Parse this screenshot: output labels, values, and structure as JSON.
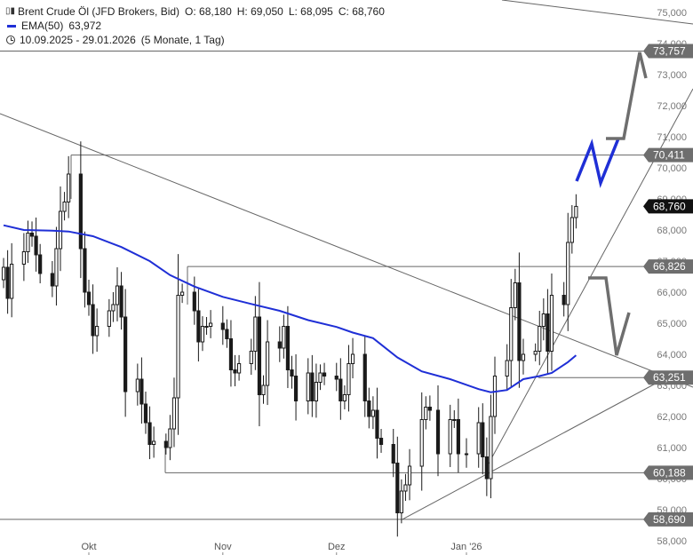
{
  "legend": {
    "instrument": "Brent Crude Öl (JFD Brokers, Bid)",
    "open": "O: 68,180",
    "high": "H: 69,050",
    "low": "L: 68,095",
    "close": "C: 68,760",
    "ema_label": "EMA(50)",
    "ema_value": "63,972",
    "range": "10.09.2025 - 29.01.2026",
    "period": "(5 Monate, 1 Tag)"
  },
  "colors": {
    "candle": "#1a1a1a",
    "ema": "#1f2fd6",
    "blue_projection": "#1f2fd6",
    "grey_projection": "#6e6e6e",
    "label_bg": "#6e6e6e",
    "current_bg": "#111111",
    "lines": "#666666"
  },
  "chart_data": {
    "type": "candlestick",
    "ylim": [
      57.6,
      75.3
    ],
    "y_ticks": [
      75,
      74,
      73,
      72,
      71,
      70,
      69,
      68,
      67,
      66,
      65,
      64,
      63,
      62,
      61,
      60,
      59,
      58
    ],
    "y_tick_labels": [
      "75,000",
      "74,000",
      "73,000",
      "72,000",
      "71,000",
      "70,000",
      "69,000",
      "68,000",
      "67,000",
      "66,000",
      "65,000",
      "64,000",
      "63,000",
      "62,000",
      "61,000",
      "60,000",
      "59,000",
      "58,000"
    ],
    "x_labels": [
      {
        "label": "Okt",
        "date": "2025-10-01"
      },
      {
        "label": "Nov",
        "date": "2025-11-03"
      },
      {
        "label": "Dez",
        "date": "2025-12-01"
      },
      {
        "label": "Jan '26",
        "date": "2026-01-02"
      }
    ],
    "x_label_text": [
      "Okt",
      "Nov",
      "Dez",
      "Jan '26"
    ],
    "ema_name": "EMA(50)",
    "close_points": [
      [
        "2025-09-10",
        66.8
      ],
      [
        "2025-09-11",
        65.8
      ],
      [
        "2025-09-12",
        66.9
      ],
      [
        "2025-09-15",
        67.3
      ],
      [
        "2025-09-16",
        67.9
      ],
      [
        "2025-09-17",
        67.8
      ],
      [
        "2025-09-18",
        67.2
      ],
      [
        "2025-09-19",
        66.6
      ],
      [
        "2025-09-22",
        66.2
      ],
      [
        "2025-09-23",
        67.4
      ],
      [
        "2025-09-24",
        68.6
      ],
      [
        "2025-09-25",
        68.9
      ],
      [
        "2025-09-26",
        69.8
      ],
      [
        "2025-09-29",
        67.4
      ],
      [
        "2025-09-30",
        66.0
      ],
      [
        "2025-10-01",
        65.6
      ],
      [
        "2025-10-02",
        64.6
      ],
      [
        "2025-10-03",
        64.9
      ],
      [
        "2025-10-06",
        65.4
      ],
      [
        "2025-10-07",
        65.6
      ],
      [
        "2025-10-08",
        66.2
      ],
      [
        "2025-10-09",
        65.2
      ],
      [
        "2025-10-10",
        62.8
      ],
      [
        "2025-10-13",
        63.2
      ],
      [
        "2025-10-14",
        62.4
      ],
      [
        "2025-10-15",
        61.8
      ],
      [
        "2025-10-16",
        61.1
      ],
      [
        "2025-10-17",
        61.2
      ],
      [
        "2025-10-20",
        61.0
      ],
      [
        "2025-10-21",
        61.6
      ],
      [
        "2025-10-22",
        62.6
      ],
      [
        "2025-10-23",
        65.9
      ],
      [
        "2025-10-24",
        66.0
      ],
      [
        "2025-10-27",
        65.4
      ],
      [
        "2025-10-28",
        64.4
      ],
      [
        "2025-10-29",
        64.9
      ],
      [
        "2025-10-30",
        64.9
      ],
      [
        "2025-10-31",
        65.0
      ],
      [
        "2025-11-03",
        64.8
      ],
      [
        "2025-11-04",
        64.5
      ],
      [
        "2025-11-05",
        63.5
      ],
      [
        "2025-11-06",
        63.4
      ],
      [
        "2025-11-07",
        63.7
      ],
      [
        "2025-11-10",
        64.1
      ],
      [
        "2025-11-11",
        65.2
      ],
      [
        "2025-11-12",
        62.7
      ],
      [
        "2025-11-13",
        63.0
      ],
      [
        "2025-11-14",
        64.4
      ],
      [
        "2025-11-17",
        64.2
      ],
      [
        "2025-11-18",
        64.9
      ],
      [
        "2025-11-19",
        63.5
      ],
      [
        "2025-11-20",
        63.3
      ],
      [
        "2025-11-21",
        62.5
      ],
      [
        "2025-11-24",
        63.4
      ],
      [
        "2025-11-25",
        62.5
      ],
      [
        "2025-11-26",
        63.1
      ],
      [
        "2025-11-27",
        63.4
      ],
      [
        "2025-11-28",
        63.3
      ],
      [
        "2025-12-01",
        63.2
      ],
      [
        "2025-12-02",
        62.5
      ],
      [
        "2025-12-03",
        62.7
      ],
      [
        "2025-12-04",
        63.7
      ],
      [
        "2025-12-05",
        64.0
      ],
      [
        "2025-12-08",
        62.5
      ],
      [
        "2025-12-09",
        62.0
      ],
      [
        "2025-12-10",
        62.2
      ],
      [
        "2025-12-11",
        61.3
      ],
      [
        "2025-12-12",
        61.1
      ],
      [
        "2025-12-15",
        60.5
      ],
      [
        "2025-12-16",
        58.9
      ],
      [
        "2025-12-17",
        59.6
      ],
      [
        "2025-12-18",
        59.8
      ],
      [
        "2025-12-19",
        60.4
      ],
      [
        "2025-12-22",
        61.9
      ],
      [
        "2025-12-23",
        62.3
      ],
      [
        "2025-12-24",
        62.2
      ],
      [
        "2025-12-26",
        60.8
      ],
      [
        "2025-12-29",
        61.9
      ],
      [
        "2025-12-30",
        61.9
      ],
      [
        "2025-12-31",
        60.8
      ],
      [
        "2026-01-02",
        60.8
      ],
      [
        "2026-01-05",
        61.8
      ],
      [
        "2026-01-06",
        60.7
      ],
      [
        "2026-01-07",
        60.0
      ],
      [
        "2026-01-08",
        62.0
      ],
      [
        "2026-01-09",
        63.3
      ],
      [
        "2026-01-12",
        63.8
      ],
      [
        "2026-01-13",
        65.5
      ],
      [
        "2026-01-14",
        66.3
      ],
      [
        "2026-01-15",
        63.8
      ],
      [
        "2026-01-16",
        64.0
      ],
      [
        "2026-01-19",
        64.1
      ],
      [
        "2026-01-20",
        64.9
      ],
      [
        "2026-01-21",
        65.3
      ],
      [
        "2026-01-22",
        64.1
      ],
      [
        "2026-01-23",
        65.9
      ],
      [
        "2026-01-26",
        65.6
      ],
      [
        "2026-01-27",
        67.6
      ],
      [
        "2026-01-28",
        68.4
      ],
      [
        "2026-01-29",
        68.76
      ]
    ],
    "ema_points": [
      [
        "2025-09-10",
        68.15
      ],
      [
        "2025-09-15",
        68.0
      ],
      [
        "2025-09-22",
        67.98
      ],
      [
        "2025-09-26",
        67.95
      ],
      [
        "2025-10-02",
        67.8
      ],
      [
        "2025-10-09",
        67.45
      ],
      [
        "2025-10-16",
        67.0
      ],
      [
        "2025-10-21",
        66.55
      ],
      [
        "2025-10-27",
        66.18
      ],
      [
        "2025-11-03",
        65.85
      ],
      [
        "2025-11-10",
        65.62
      ],
      [
        "2025-11-17",
        65.4
      ],
      [
        "2025-11-24",
        65.1
      ],
      [
        "2025-12-01",
        64.88
      ],
      [
        "2025-12-05",
        64.7
      ],
      [
        "2025-12-10",
        64.52
      ],
      [
        "2025-12-16",
        63.9
      ],
      [
        "2025-12-22",
        63.45
      ],
      [
        "2025-12-29",
        63.2
      ],
      [
        "2026-01-05",
        62.88
      ],
      [
        "2026-01-08",
        62.78
      ],
      [
        "2026-01-12",
        62.85
      ],
      [
        "2026-01-16",
        63.2
      ],
      [
        "2026-01-20",
        63.3
      ],
      [
        "2026-01-23",
        63.4
      ],
      [
        "2026-01-27",
        63.75
      ],
      [
        "2026-01-29",
        63.97
      ]
    ],
    "horizontal_levels": [
      {
        "value": 73.757,
        "label": "73,757"
      },
      {
        "value": 70.411,
        "label": "70,411"
      },
      {
        "value": 66.826,
        "label": "66,826"
      },
      {
        "value": 63.251,
        "label": "63,251"
      },
      {
        "value": 60.188,
        "label": "60,188"
      },
      {
        "value": 58.69,
        "label": "58,690"
      }
    ],
    "current_price": {
      "value": 68.76,
      "label": "68,760"
    }
  }
}
